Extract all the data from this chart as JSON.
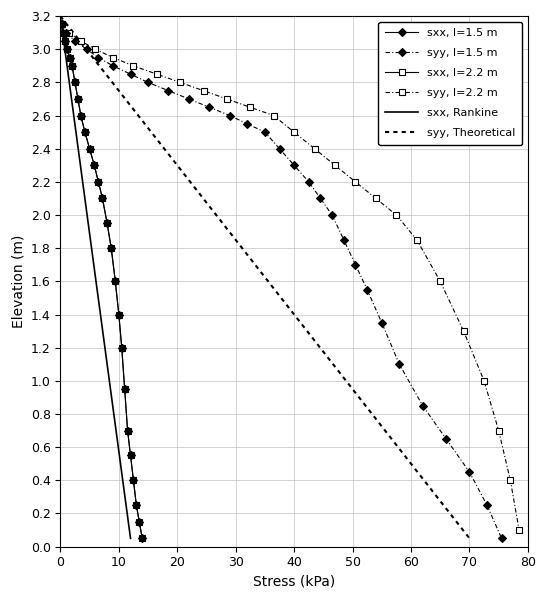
{
  "xlabel": "Stress (kPa)",
  "ylabel": "Elevation (m)",
  "xlim": [
    0,
    80
  ],
  "ylim": [
    0,
    3.2
  ],
  "xticks": [
    0,
    10,
    20,
    30,
    40,
    50,
    60,
    70,
    80
  ],
  "yticks": [
    0,
    0.2,
    0.4,
    0.6,
    0.8,
    1.0,
    1.2,
    1.4,
    1.6,
    1.8,
    2.0,
    2.2,
    2.4,
    2.6,
    2.8,
    3.0,
    3.2
  ],
  "sxx_15_stress": [
    0.3,
    0.5,
    0.8,
    1.2,
    1.6,
    2.0,
    2.5,
    3.0,
    3.5,
    4.2,
    5.0,
    5.8,
    6.5,
    7.2,
    8.0,
    8.7,
    9.4,
    10.0,
    10.5,
    11.0,
    11.5,
    12.0,
    12.5,
    13.0,
    13.5,
    14.0
  ],
  "sxx_15_elev": [
    3.15,
    3.1,
    3.05,
    3.0,
    2.95,
    2.9,
    2.8,
    2.7,
    2.6,
    2.5,
    2.4,
    2.3,
    2.2,
    2.1,
    1.95,
    1.8,
    1.6,
    1.4,
    1.2,
    0.95,
    0.7,
    0.55,
    0.4,
    0.25,
    0.15,
    0.05
  ],
  "syy_15_stress": [
    0.3,
    1.0,
    2.5,
    4.5,
    6.5,
    9.0,
    12.0,
    15.0,
    18.5,
    22.0,
    25.5,
    29.0,
    32.0,
    35.0,
    37.5,
    40.0,
    42.5,
    44.5,
    46.5,
    48.5,
    50.5,
    52.5,
    55.0,
    58.0,
    62.0,
    66.0,
    70.0,
    73.0,
    75.5
  ],
  "syy_15_elev": [
    3.15,
    3.1,
    3.05,
    3.0,
    2.95,
    2.9,
    2.85,
    2.8,
    2.75,
    2.7,
    2.65,
    2.6,
    2.55,
    2.5,
    2.4,
    2.3,
    2.2,
    2.1,
    2.0,
    1.85,
    1.7,
    1.55,
    1.35,
    1.1,
    0.85,
    0.65,
    0.45,
    0.25,
    0.05
  ],
  "sxx_22_stress": [
    0.3,
    0.5,
    0.8,
    1.2,
    1.6,
    2.0,
    2.5,
    3.0,
    3.5,
    4.2,
    5.0,
    5.8,
    6.5,
    7.2,
    8.0,
    8.7,
    9.4,
    10.0,
    10.5,
    11.0,
    11.5,
    12.0,
    12.5,
    13.0,
    13.5,
    14.0
  ],
  "sxx_22_elev": [
    3.15,
    3.1,
    3.05,
    3.0,
    2.95,
    2.9,
    2.8,
    2.7,
    2.6,
    2.5,
    2.4,
    2.3,
    2.2,
    2.1,
    1.95,
    1.8,
    1.6,
    1.4,
    1.2,
    0.95,
    0.7,
    0.55,
    0.4,
    0.25,
    0.15,
    0.05
  ],
  "syy_22_stress": [
    0.3,
    1.5,
    3.5,
    6.0,
    9.0,
    12.5,
    16.5,
    20.5,
    24.5,
    28.5,
    32.5,
    36.5,
    40.0,
    43.5,
    47.0,
    50.5,
    54.0,
    57.5,
    61.0,
    65.0,
    69.0,
    72.5,
    75.0,
    77.0,
    78.5
  ],
  "syy_22_elev": [
    3.15,
    3.1,
    3.05,
    3.0,
    2.95,
    2.9,
    2.85,
    2.8,
    2.75,
    2.7,
    2.65,
    2.6,
    2.5,
    2.4,
    2.3,
    2.2,
    2.1,
    2.0,
    1.85,
    1.6,
    1.3,
    1.0,
    0.7,
    0.4,
    0.1
  ],
  "sxx_rankine_stress": [
    0.0,
    12.0
  ],
  "sxx_rankine_elev": [
    3.2,
    0.05
  ],
  "syy_theoretical_stress": [
    0.0,
    70.0
  ],
  "syy_theoretical_elev": [
    3.2,
    0.05
  ],
  "bg_color": "#ffffff",
  "line_color": "#000000",
  "grid_color": "#c0c0c0"
}
